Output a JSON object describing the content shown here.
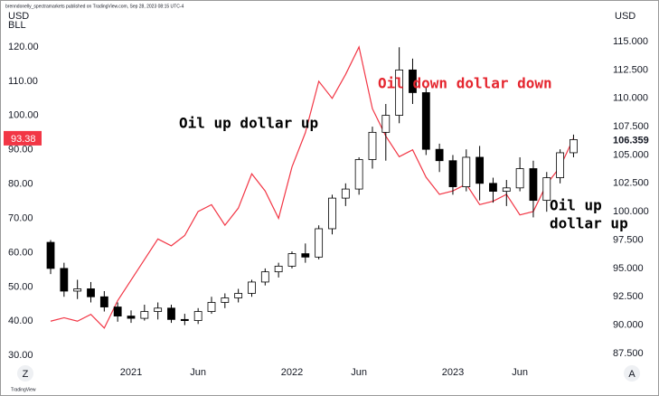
{
  "chart_data": {
    "type": "candlestick",
    "header": "brenndonelly_spectramarkets published on TradingView.com, Sep 28, 2023 08:15 UTC-4",
    "y_label_lines": [
      "USD",
      "BLL"
    ],
    "y2_label": "USD",
    "brand": "TradingView",
    "buttons": [
      "Z",
      "A"
    ],
    "x": [
      -6,
      -5,
      -4,
      -3,
      -2,
      -1,
      0,
      1,
      2,
      3,
      4,
      5,
      6,
      7,
      8,
      9,
      10,
      11,
      12,
      13,
      14,
      15,
      16,
      17,
      18,
      19,
      20,
      21,
      22,
      23,
      24,
      25,
      26,
      27,
      28,
      29,
      30,
      31,
      32,
      33
    ],
    "xlim": [
      -6.54,
      35.06
    ],
    "xticks": [
      {
        "value": 0,
        "label": "2021"
      },
      {
        "value": 5,
        "label": "Jun"
      },
      {
        "value": 12,
        "label": "2022"
      },
      {
        "value": 17,
        "label": "Jun"
      },
      {
        "value": 24,
        "label": "2023"
      },
      {
        "value": 29,
        "label": "Jun"
      }
    ],
    "ylim": [
      28.2,
      131.6
    ],
    "yticks": [
      {
        "value": 30,
        "label": "30.00"
      },
      {
        "value": 40,
        "label": "40.00"
      },
      {
        "value": 50,
        "label": "50.00"
      },
      {
        "value": 60,
        "label": "60.00"
      },
      {
        "value": 70,
        "label": "70.00"
      },
      {
        "value": 80,
        "label": "80.00"
      },
      {
        "value": 90,
        "label": "90.00"
      },
      {
        "value": 100,
        "label": "100.00"
      },
      {
        "value": 110,
        "label": "110.00"
      },
      {
        "value": 120,
        "label": "120.00"
      }
    ],
    "y2lim": [
      86.78,
      118.03
    ],
    "y2ticks": [
      {
        "value": 87.5,
        "label": "87.500"
      },
      {
        "value": 90,
        "label": "90.000"
      },
      {
        "value": 92.5,
        "label": "92.500"
      },
      {
        "value": 95,
        "label": "95.000"
      },
      {
        "value": 97.5,
        "label": "97.500"
      },
      {
        "value": 100,
        "label": "100.000"
      },
      {
        "value": 102.5,
        "label": "102.500"
      },
      {
        "value": 105,
        "label": "105.000"
      },
      {
        "value": 107.5,
        "label": "107.500"
      },
      {
        "value": 110,
        "label": "110.000"
      },
      {
        "value": 112.5,
        "label": "112.500"
      },
      {
        "value": 115,
        "label": "115.000"
      }
    ],
    "series": [
      {
        "type": "line",
        "color": "#f23645",
        "values": [
          40,
          41,
          40,
          42,
          38,
          46,
          52,
          58,
          64,
          62,
          65,
          72,
          74,
          68,
          73,
          83,
          78,
          70,
          85,
          95,
          110,
          105,
          112,
          120,
          102,
          94,
          88,
          90,
          82,
          77,
          78,
          80,
          74,
          75,
          77,
          71,
          72,
          80,
          85,
          93.38
        ]
      },
      {
        "type": "candlestick",
        "axis": "y2",
        "up_color": "#ffffff",
        "down_color": "#000000",
        "outline": "#000000",
        "open": [
          97.3,
          95,
          93,
          93.2,
          92.5,
          91.6,
          90.8,
          90.6,
          91.2,
          91.5,
          90.5,
          90.4,
          91.2,
          92,
          92.4,
          92.8,
          93.8,
          94.7,
          95.2,
          96.3,
          96,
          98.5,
          101.2,
          102,
          104.6,
          107,
          108.5,
          112.5,
          110.5,
          105.5,
          104.5,
          102.2,
          104.8,
          102.5,
          101.8,
          102.1,
          103.8,
          101,
          103,
          105.2
        ],
        "high": [
          97.5,
          95.5,
          94,
          93.8,
          93,
          92,
          91.3,
          91.8,
          92,
          91.8,
          91,
          91.5,
          92.5,
          92.8,
          93.2,
          94,
          95,
          95.5,
          96.5,
          97.2,
          98.8,
          101.5,
          102.5,
          104.8,
          107.5,
          109.5,
          114.5,
          113.5,
          111,
          106,
          105,
          105.5,
          105.8,
          103,
          102.8,
          104.8,
          104.5,
          103.5,
          105.5,
          106.8
        ],
        "low": [
          94.5,
          92.5,
          92.3,
          92,
          91.2,
          90.3,
          90.2,
          90.4,
          90.5,
          90.2,
          90,
          90.1,
          91,
          91.5,
          92,
          92.5,
          93.5,
          94.2,
          95,
          95.5,
          95.8,
          98,
          100.5,
          101.5,
          103.8,
          104.5,
          107.8,
          109.5,
          105,
          103.5,
          101.5,
          101.8,
          101,
          100.8,
          100.5,
          101.8,
          99.5,
          100,
          102.5,
          104.8
        ],
        "close": [
          95,
          93,
          93.2,
          92.5,
          91.6,
          90.8,
          90.6,
          91.2,
          91.5,
          90.5,
          90.4,
          91.2,
          92,
          92.4,
          92.8,
          93.8,
          94.7,
          95.2,
          96.3,
          96,
          98.5,
          101.2,
          102,
          104.6,
          107,
          108.5,
          112.5,
          110.5,
          105.5,
          104.5,
          102.2,
          104.8,
          102.5,
          101.8,
          102.1,
          103.8,
          101,
          103,
          105.2,
          106.359
        ]
      }
    ],
    "annotations": [
      {
        "text": "Oil up dollar up",
        "color": "#000000"
      },
      {
        "text": "Oil down dollar down",
        "color": "#e5262f"
      },
      {
        "text": "Oil up",
        "color": "#000000"
      },
      {
        "text": "dollar up",
        "color": "#000000"
      }
    ]
  }
}
